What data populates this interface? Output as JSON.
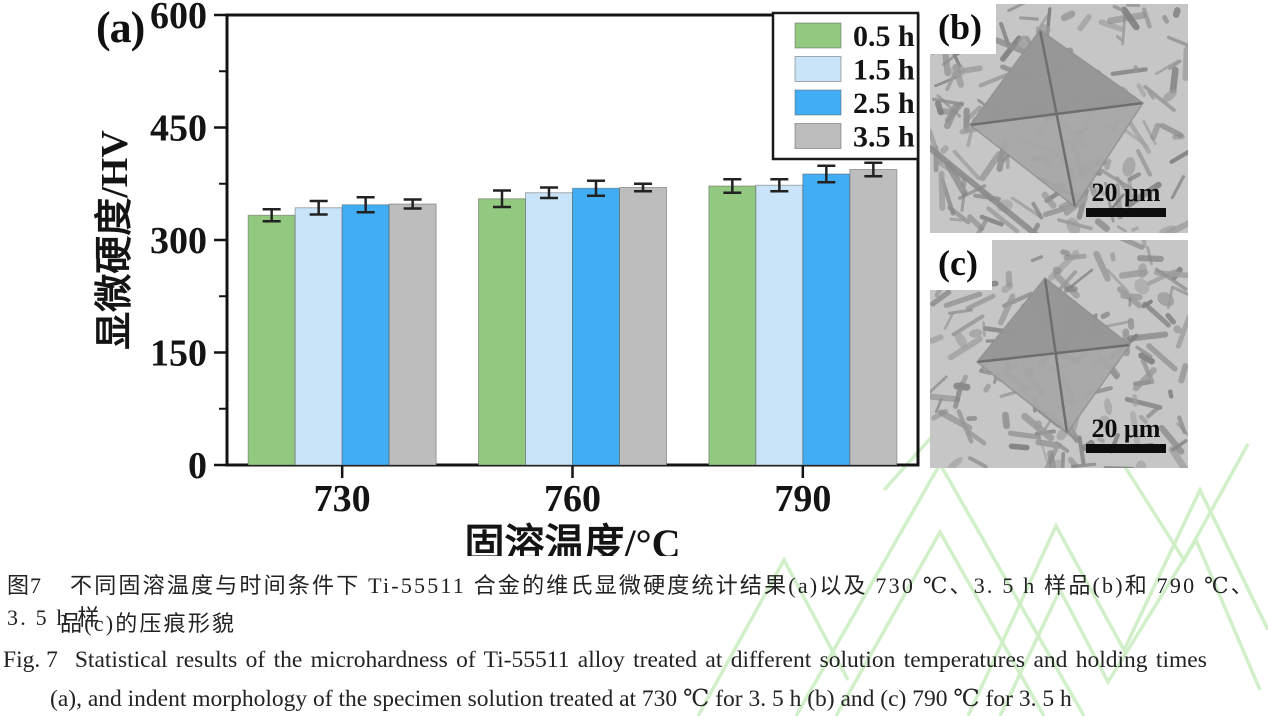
{
  "figure": {
    "background": "#ffffff",
    "watermark_color": "#cfeec6"
  },
  "panels": {
    "a": {
      "label": "(a)"
    },
    "b": {
      "label": "(b)",
      "scale_text": "20 μm"
    },
    "c": {
      "label": "(c)",
      "scale_text": "20 μm"
    }
  },
  "chart_data": {
    "type": "bar",
    "title": "",
    "xlabel": "固溶温度/°C",
    "ylabel": "显微硬度/HV",
    "categories": [
      "730",
      "760",
      "790"
    ],
    "series": [
      {
        "name": "0.5 h",
        "color": "#92c87f",
        "values": [
          333,
          355,
          372
        ],
        "errors": [
          8,
          11,
          9
        ]
      },
      {
        "name": "1.5 h",
        "color": "#c9e4f9",
        "values": [
          343,
          363,
          373
        ],
        "errors": [
          9,
          7,
          8
        ]
      },
      {
        "name": "2.5 h",
        "color": "#41aef4",
        "values": [
          347,
          369,
          388
        ],
        "errors": [
          10,
          10,
          11
        ]
      },
      {
        "name": "3.5 h",
        "color": "#bdbdbd",
        "values": [
          348,
          370,
          394
        ],
        "errors": [
          6,
          5,
          9
        ]
      }
    ],
    "ylim": [
      0,
      600
    ],
    "yticks": [
      0,
      150,
      300,
      450,
      600
    ],
    "legend_position": "top-right",
    "grid": false,
    "axis_color": "#141414",
    "bar_edge_color": "rgba(80,80,80,0.45)",
    "error_bar_color": "#222222"
  },
  "captions": {
    "zh_label": "图7",
    "zh_line1": "不同固溶温度与时间条件下 Ti-55511 合金的维氏显微硬度统计结果(a)以及 730 ℃、3. 5 h 样品(b)和 790 ℃、3. 5 h 样",
    "zh_line2": "品(c)的压痕形貌",
    "en_label": "Fig. 7",
    "en_line1": "Statistical results of the microhardness of Ti-55511 alloy treated at different solution temperatures and holding times",
    "en_line2": "(a), and indent morphology of the specimen solution treated at 730 ℃ for 3. 5 h (b) and (c) 790 ℃ for 3. 5 h"
  }
}
